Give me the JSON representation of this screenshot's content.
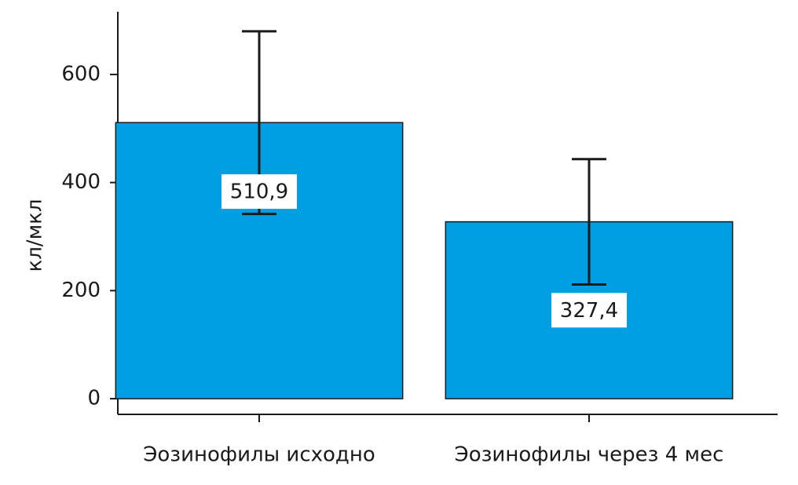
{
  "chart_data": {
    "type": "bar",
    "y_label": "кл/мкл",
    "categories": [
      "Эозинофилы исходно",
      "Эозинофилы через 4 мес"
    ],
    "values": [
      510.9,
      327.4
    ],
    "value_labels": [
      "510,9",
      "327,4"
    ],
    "errors": [
      169,
      116
    ],
    "color": "#009fe3",
    "ylim": [
      -29,
      716
    ],
    "yticks": [
      0,
      200,
      400,
      600
    ]
  }
}
